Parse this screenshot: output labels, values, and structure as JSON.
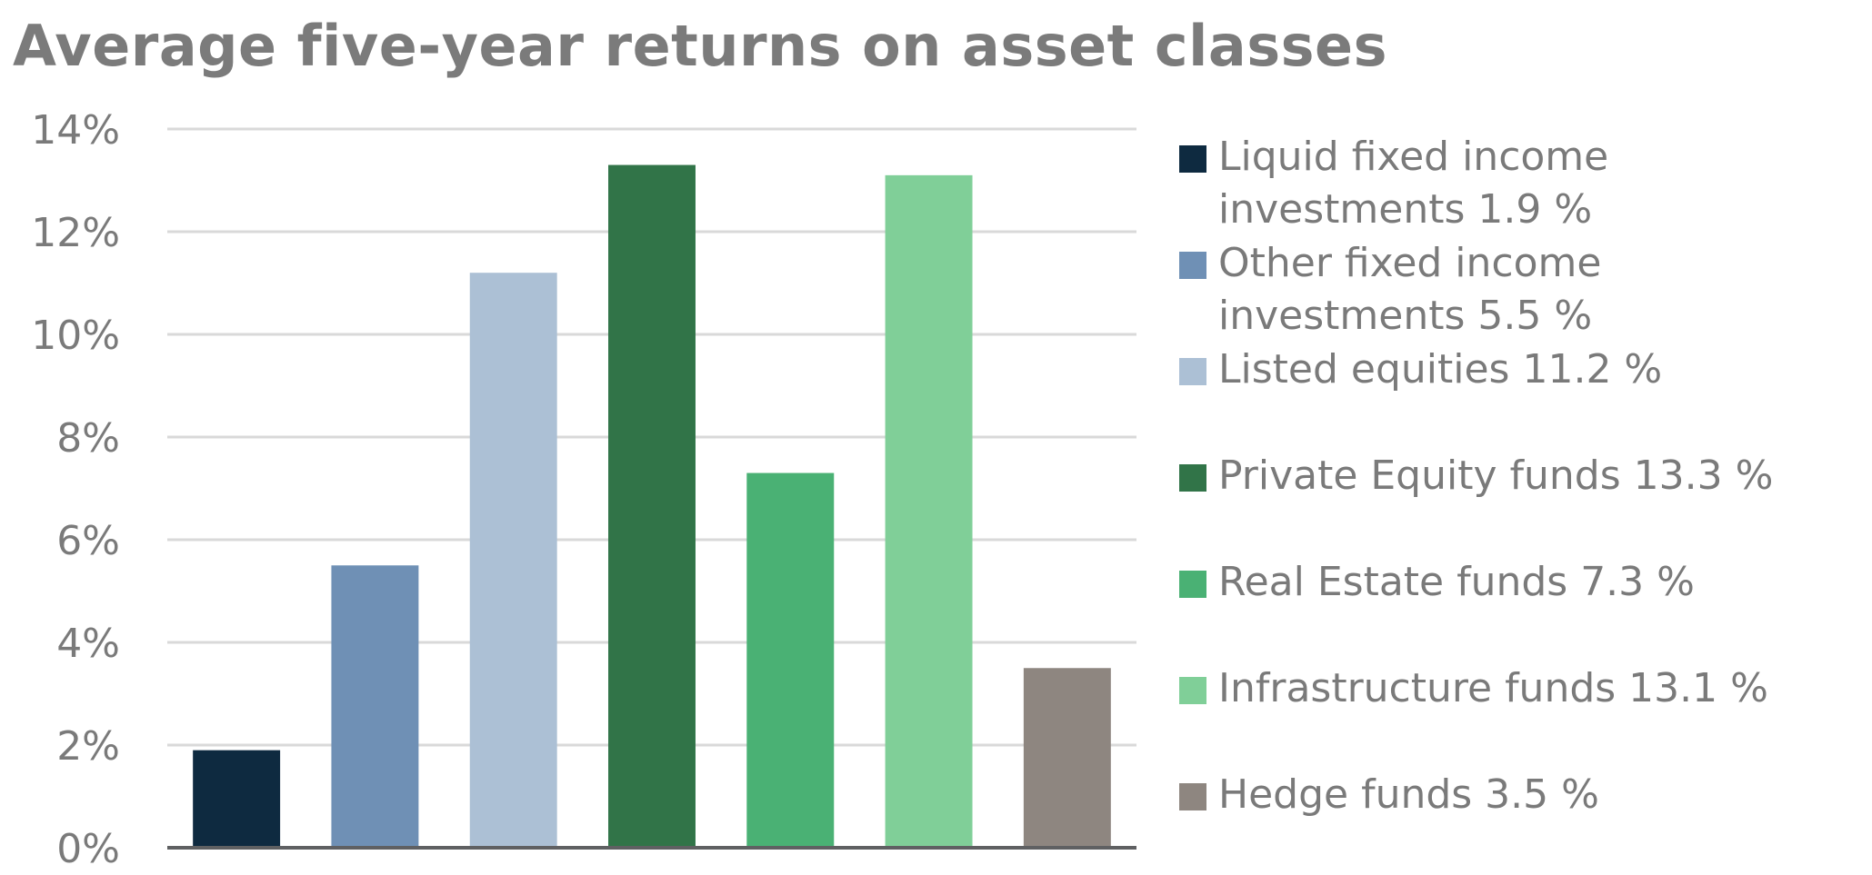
{
  "chart_data": {
    "type": "bar",
    "title": "Average five-year returns on asset classes",
    "categories": [
      "Liquid fixed income investments",
      "Other fixed income investments",
      "Listed equities",
      "Private Equity funds",
      "Real Estate funds",
      "Infrastructure funds",
      "Hedge funds"
    ],
    "values": [
      1.9,
      5.5,
      11.2,
      13.3,
      7.3,
      13.1,
      3.5
    ],
    "colors": [
      "#0e2a40",
      "#6f90b5",
      "#acc0d5",
      "#317448",
      "#4ab174",
      "#80cf98",
      "#8e8680"
    ],
    "ylim": [
      0,
      14
    ],
    "yticks": [
      0,
      2,
      4,
      6,
      8,
      10,
      12,
      14
    ],
    "ytick_labels": [
      "0%",
      "2%",
      "4%",
      "6%",
      "8%",
      "10%",
      "12%",
      "14%"
    ],
    "grid": true,
    "legend_position": "right",
    "legend_entries": [
      "Liquid fixed income investments 1.9 %",
      "Other fixed income investments 5.5 %",
      "Listed equities 11.2 %",
      "Private Equity funds 13.3 %",
      "Real Estate funds 7.3 %",
      "Infrastructure funds 13.1 %",
      "Hedge funds 3.5 %"
    ],
    "xlabel": "",
    "ylabel": ""
  }
}
